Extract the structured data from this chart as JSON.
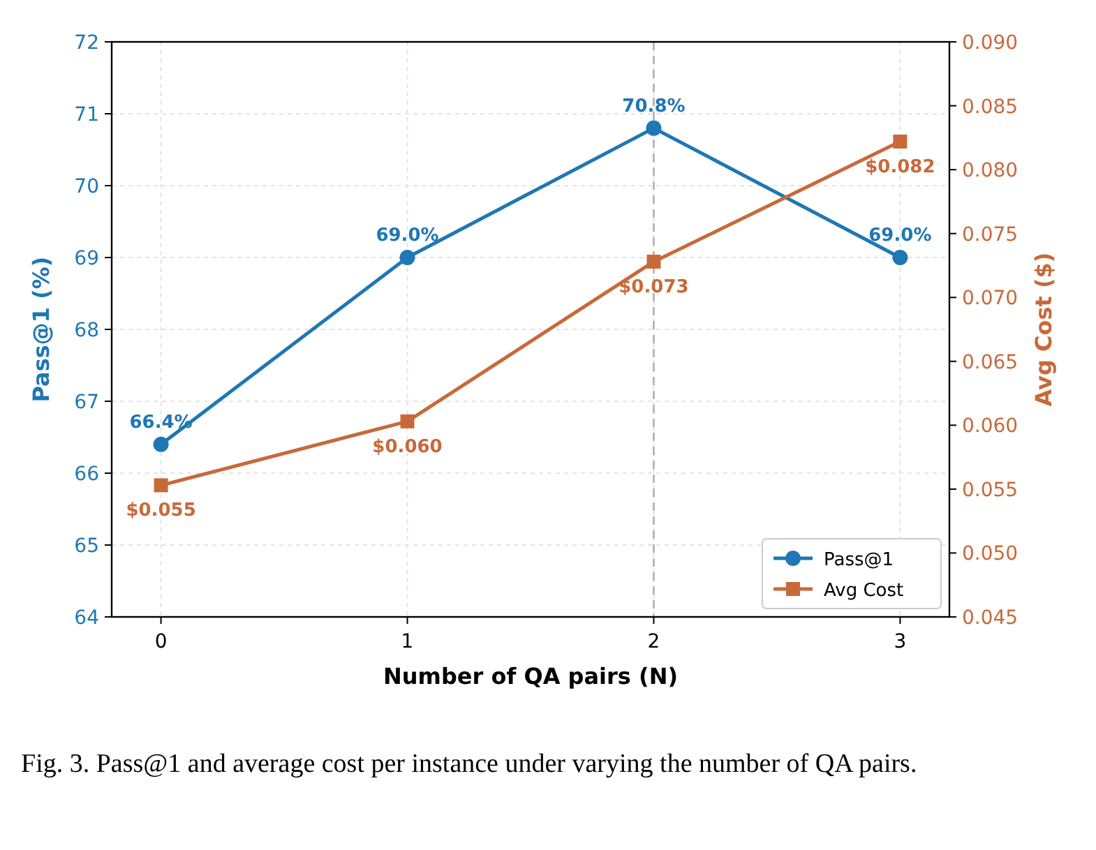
{
  "chart_data": {
    "type": "line",
    "xlabel": "Number of QA pairs (N)",
    "ylabel": "Pass@1 (%)",
    "y2label": "Avg Cost ($)",
    "x": [
      0,
      1,
      2,
      3
    ],
    "xlim": [
      -0.2,
      3.2
    ],
    "xticks": [
      0,
      1,
      2,
      3
    ],
    "ylim": [
      64,
      72
    ],
    "yticks": [
      64,
      65,
      66,
      67,
      68,
      69,
      70,
      71,
      72
    ],
    "y2lim": [
      0.045,
      0.09
    ],
    "y2ticks": [
      {
        "value": 0.045,
        "label": "0.045"
      },
      {
        "value": 0.05,
        "label": "0.050"
      },
      {
        "value": 0.055,
        "label": "0.055"
      },
      {
        "value": 0.06,
        "label": "0.060"
      },
      {
        "value": 0.065,
        "label": "0.065"
      },
      {
        "value": 0.07,
        "label": "0.070"
      },
      {
        "value": 0.075,
        "label": "0.075"
      },
      {
        "value": 0.08,
        "label": "0.080"
      },
      {
        "value": 0.085,
        "label": "0.085"
      },
      {
        "value": 0.09,
        "label": "0.090"
      }
    ],
    "series": [
      {
        "name": "Pass@1",
        "color": "#1f77b4",
        "marker": "circle",
        "values": [
          66.4,
          69.0,
          70.8,
          69.0
        ],
        "value_labels": [
          "66.4%",
          "69.0%",
          "70.8%",
          "69.0%"
        ]
      },
      {
        "name": "Avg Cost",
        "color": "#c8693a",
        "marker": "square",
        "axis": "y2",
        "values": [
          0.0553,
          0.0603,
          0.0728,
          0.0822
        ],
        "value_labels": [
          "$0.055",
          "$0.060",
          "$0.073",
          "$0.082"
        ]
      }
    ],
    "ref_lines": [
      {
        "axis": "x",
        "value": 2,
        "color": "#aaaaaa",
        "line_style": "dashed"
      }
    ],
    "grid": true,
    "legend": "bottom right",
    "line_style": "solid",
    "annotations": [
      "Fig. 3.  Pass@1 and average cost per instance under varying the number of QA pairs."
    ]
  }
}
